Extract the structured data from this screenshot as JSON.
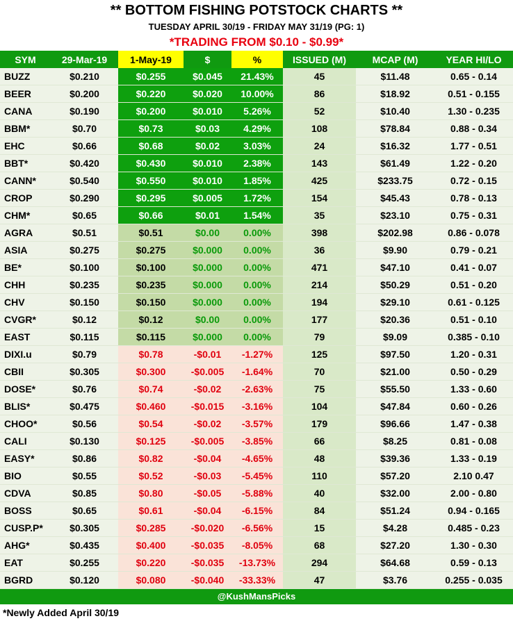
{
  "header": {
    "title": "** BOTTOM FISHING POTSTOCK CHARTS **",
    "subtitle": "TUESDAY APRIL 30/19 - FRIDAY MAY 31/19 (PG: 1)",
    "range": "*TRADING FROM $0.10 - $0.99*"
  },
  "columns": [
    "SYM",
    "29-Mar-19",
    "1-May-19",
    "$",
    "%",
    "ISSUED (M)",
    "MCAP (M)",
    "YEAR HI/LO"
  ],
  "rows": [
    {
      "sym": "BUZZ",
      "mar": "$0.210",
      "may": "$0.255",
      "dol": "$0.045",
      "pct": "21.43%",
      "iss": "45",
      "mcap": "$11.48",
      "yr": "0.65 - 0.14",
      "trend": "up"
    },
    {
      "sym": "BEER",
      "mar": "$0.200",
      "may": "$0.220",
      "dol": "$0.020",
      "pct": "10.00%",
      "iss": "86",
      "mcap": "$18.92",
      "yr": "0.51 - 0.155",
      "trend": "up"
    },
    {
      "sym": "CANA",
      "mar": "$0.190",
      "may": "$0.200",
      "dol": "$0.010",
      "pct": "5.26%",
      "iss": "52",
      "mcap": "$10.40",
      "yr": "1.30 - 0.235",
      "trend": "up"
    },
    {
      "sym": "BBM*",
      "mar": "$0.70",
      "may": "$0.73",
      "dol": "$0.03",
      "pct": "4.29%",
      "iss": "108",
      "mcap": "$78.84",
      "yr": "0.88 - 0.34",
      "trend": "up"
    },
    {
      "sym": "EHC",
      "mar": "$0.66",
      "may": "$0.68",
      "dol": "$0.02",
      "pct": "3.03%",
      "iss": "24",
      "mcap": "$16.32",
      "yr": "1.77 - 0.51",
      "trend": "up"
    },
    {
      "sym": "BBT*",
      "mar": "$0.420",
      "may": "$0.430",
      "dol": "$0.010",
      "pct": "2.38%",
      "iss": "143",
      "mcap": "$61.49",
      "yr": "1.22 - 0.20",
      "trend": "up"
    },
    {
      "sym": "CANN*",
      "mar": "$0.540",
      "may": "$0.550",
      "dol": "$0.010",
      "pct": "1.85%",
      "iss": "425",
      "mcap": "$233.75",
      "yr": "0.72 - 0.15",
      "trend": "up"
    },
    {
      "sym": "CROP",
      "mar": "$0.290",
      "may": "$0.295",
      "dol": "$0.005",
      "pct": "1.72%",
      "iss": "154",
      "mcap": "$45.43",
      "yr": "0.78 - 0.13",
      "trend": "up"
    },
    {
      "sym": "CHM*",
      "mar": "$0.65",
      "may": "$0.66",
      "dol": "$0.01",
      "pct": "1.54%",
      "iss": "35",
      "mcap": "$23.10",
      "yr": "0.75 - 0.31",
      "trend": "up"
    },
    {
      "sym": "AGRA",
      "mar": "$0.51",
      "may": "$0.51",
      "dol": "$0.00",
      "pct": "0.00%",
      "iss": "398",
      "mcap": "$202.98",
      "yr": "0.86 - 0.078",
      "trend": "flat"
    },
    {
      "sym": "ASIA",
      "mar": "$0.275",
      "may": "$0.275",
      "dol": "$0.000",
      "pct": "0.00%",
      "iss": "36",
      "mcap": "$9.90",
      "yr": "0.79 - 0.21",
      "trend": "flat"
    },
    {
      "sym": "BE*",
      "mar": "$0.100",
      "may": "$0.100",
      "dol": "$0.000",
      "pct": "0.00%",
      "iss": "471",
      "mcap": "$47.10",
      "yr": "0.41 - 0.07",
      "trend": "flat"
    },
    {
      "sym": "CHH",
      "mar": "$0.235",
      "may": "$0.235",
      "dol": "$0.000",
      "pct": "0.00%",
      "iss": "214",
      "mcap": "$50.29",
      "yr": "0.51 - 0.20",
      "trend": "flat"
    },
    {
      "sym": "CHV",
      "mar": "$0.150",
      "may": "$0.150",
      "dol": "$0.000",
      "pct": "0.00%",
      "iss": "194",
      "mcap": "$29.10",
      "yr": "0.61 - 0.125",
      "trend": "flat"
    },
    {
      "sym": "CVGR*",
      "mar": "$0.12",
      "may": "$0.12",
      "dol": "$0.00",
      "pct": "0.00%",
      "iss": "177",
      "mcap": "$20.36",
      "yr": "0.51 - 0.10",
      "trend": "flat"
    },
    {
      "sym": "EAST",
      "mar": "$0.115",
      "may": "$0.115",
      "dol": "$0.000",
      "pct": "0.00%",
      "iss": "79",
      "mcap": "$9.09",
      "yr": "0.385 - 0.10",
      "trend": "flat"
    },
    {
      "sym": "DIXI.u",
      "mar": "$0.79",
      "may": "$0.78",
      "dol": "-$0.01",
      "pct": "-1.27%",
      "iss": "125",
      "mcap": "$97.50",
      "yr": "1.20 - 0.31",
      "trend": "down"
    },
    {
      "sym": "CBII",
      "mar": "$0.305",
      "may": "$0.300",
      "dol": "-$0.005",
      "pct": "-1.64%",
      "iss": "70",
      "mcap": "$21.00",
      "yr": "0.50 - 0.29",
      "trend": "down"
    },
    {
      "sym": "DOSE*",
      "mar": "$0.76",
      "may": "$0.74",
      "dol": "-$0.02",
      "pct": "-2.63%",
      "iss": "75",
      "mcap": "$55.50",
      "yr": "1.33 - 0.60",
      "trend": "down"
    },
    {
      "sym": "BLIS*",
      "mar": "$0.475",
      "may": "$0.460",
      "dol": "-$0.015",
      "pct": "-3.16%",
      "iss": "104",
      "mcap": "$47.84",
      "yr": "0.60 - 0.26",
      "trend": "down"
    },
    {
      "sym": "CHOO*",
      "mar": "$0.56",
      "may": "$0.54",
      "dol": "-$0.02",
      "pct": "-3.57%",
      "iss": "179",
      "mcap": "$96.66",
      "yr": "1.47 - 0.38",
      "trend": "down"
    },
    {
      "sym": "CALI",
      "mar": "$0.130",
      "may": "$0.125",
      "dol": "-$0.005",
      "pct": "-3.85%",
      "iss": "66",
      "mcap": "$8.25",
      "yr": "0.81 - 0.08",
      "trend": "down"
    },
    {
      "sym": "EASY*",
      "mar": "$0.86",
      "may": "$0.82",
      "dol": "-$0.04",
      "pct": "-4.65%",
      "iss": "48",
      "mcap": "$39.36",
      "yr": "1.33 - 0.19",
      "trend": "down"
    },
    {
      "sym": "BIO",
      "mar": "$0.55",
      "may": "$0.52",
      "dol": "-$0.03",
      "pct": "-5.45%",
      "iss": "110",
      "mcap": "$57.20",
      "yr": "2.10  0.47",
      "trend": "down"
    },
    {
      "sym": "CDVA",
      "mar": "$0.85",
      "may": "$0.80",
      "dol": "-$0.05",
      "pct": "-5.88%",
      "iss": "40",
      "mcap": "$32.00",
      "yr": "2.00 - 0.80",
      "trend": "down"
    },
    {
      "sym": "BOSS",
      "mar": "$0.65",
      "may": "$0.61",
      "dol": "-$0.04",
      "pct": "-6.15%",
      "iss": "84",
      "mcap": "$51.24",
      "yr": "0.94 - 0.165",
      "trend": "down"
    },
    {
      "sym": "CUSP.P*",
      "mar": "$0.305",
      "may": "$0.285",
      "dol": "-$0.020",
      "pct": "-6.56%",
      "iss": "15",
      "mcap": "$4.28",
      "yr": "0.485 - 0.23",
      "trend": "down"
    },
    {
      "sym": "AHG*",
      "mar": "$0.435",
      "may": "$0.400",
      "dol": "-$0.035",
      "pct": "-8.05%",
      "iss": "68",
      "mcap": "$27.20",
      "yr": "1.30 - 0.30",
      "trend": "down"
    },
    {
      "sym": "EAT",
      "mar": "$0.255",
      "may": "$0.220",
      "dol": "-$0.035",
      "pct": "-13.73%",
      "iss": "294",
      "mcap": "$64.68",
      "yr": "0.59 - 0.13",
      "trend": "down"
    },
    {
      "sym": "BGRD",
      "mar": "$0.120",
      "may": "$0.080",
      "dol": "-$0.040",
      "pct": "-33.33%",
      "iss": "47",
      "mcap": "$3.76",
      "yr": "0.255 - 0.035",
      "trend": "down"
    }
  ],
  "footer": "@KushMansPicks",
  "note": "*Newly Added April 30/19",
  "colors": {
    "header_green": "#109a10",
    "highlight_yellow": "#ffff00",
    "gain_green": "#0ea00e",
    "loss_red": "#e0000f",
    "range_red": "#e8000f"
  }
}
